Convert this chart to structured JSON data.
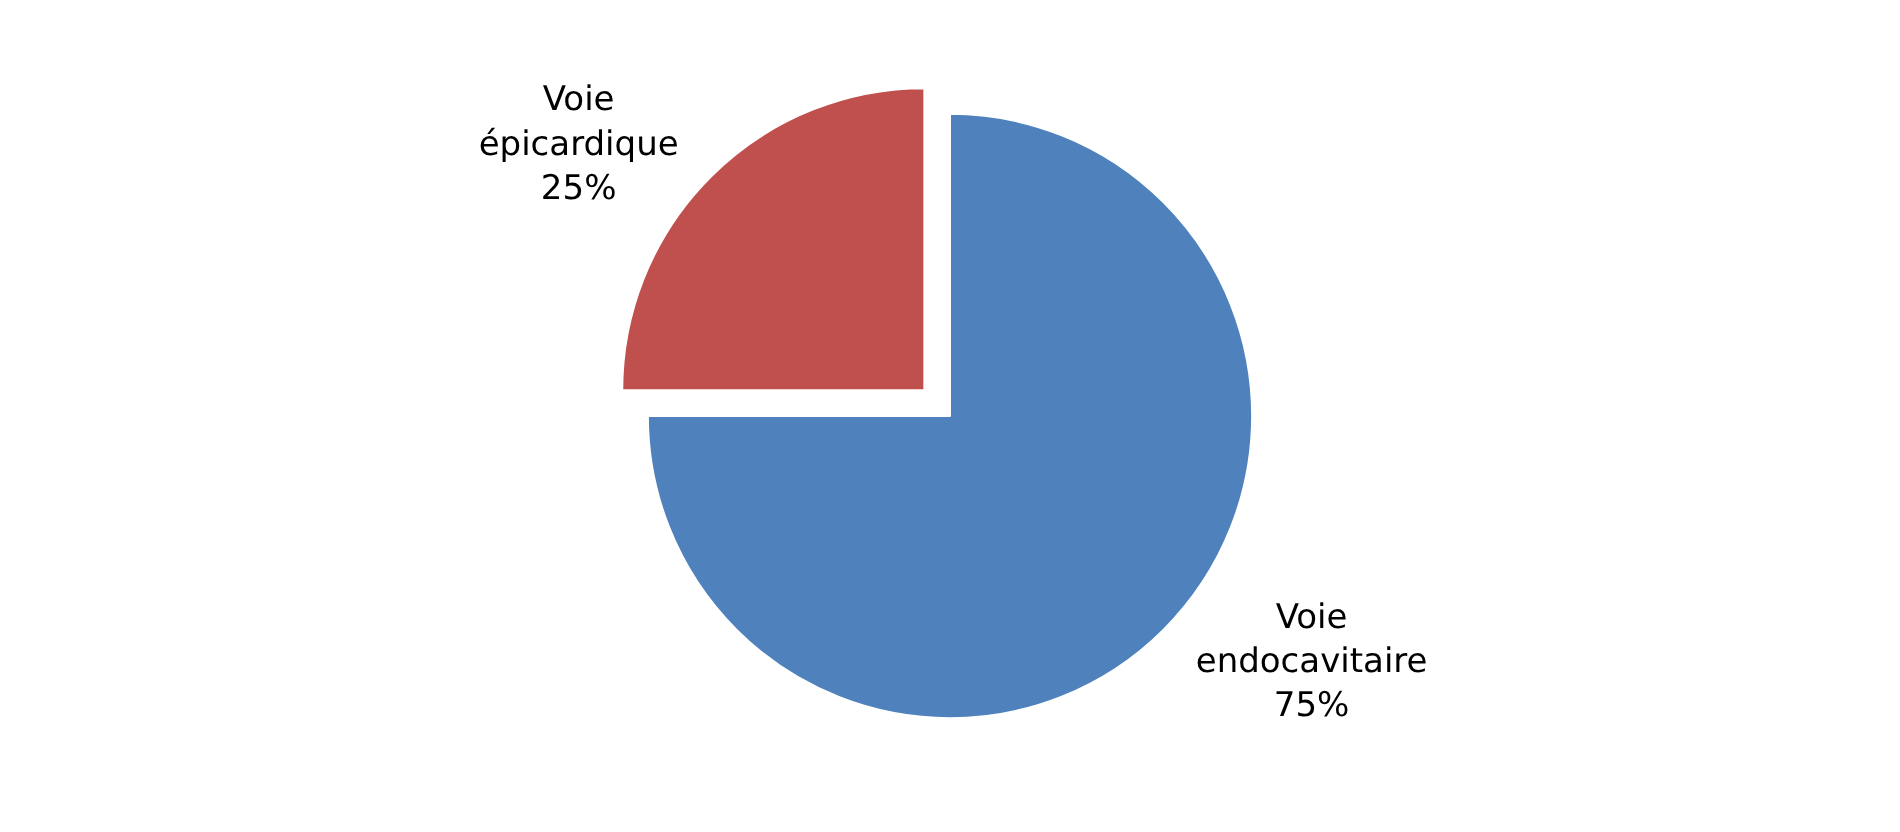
{
  "chart_data": {
    "type": "pie",
    "categories": [
      "Voie endocavitaire",
      "Voie épicardique"
    ],
    "values": [
      75,
      25
    ],
    "value_labels": [
      "75%",
      "25%"
    ],
    "colors": [
      "#4f81bd",
      "#c0504d"
    ],
    "legend": false
  }
}
